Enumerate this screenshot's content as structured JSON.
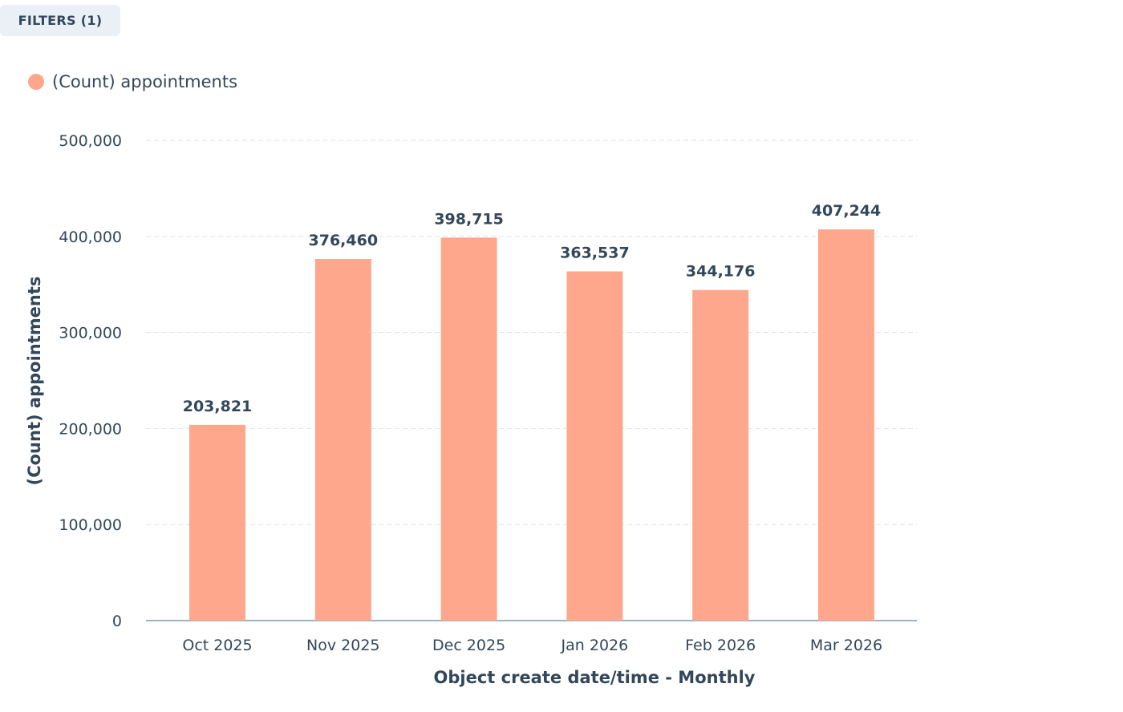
{
  "toolbar": {
    "filters_label": "FILTERS (1)"
  },
  "colors": {
    "bar": "#ffa78c",
    "text": "#33475b",
    "grid": "#dfe3eb",
    "axis": "#7c98b6"
  },
  "chart_data": {
    "type": "bar",
    "legend": [
      {
        "label": "(Count) appointments",
        "color": "#ffa78c"
      }
    ],
    "legend_placement": "top-left",
    "categories": [
      "Oct 2025",
      "Nov 2025",
      "Dec 2025",
      "Jan 2026",
      "Feb 2026",
      "Mar 2026"
    ],
    "values": [
      203821,
      376460,
      398715,
      363537,
      344176,
      407244
    ],
    "data_labels": [
      "203,821",
      "376,460",
      "398,715",
      "363,537",
      "344,176",
      "407,244"
    ],
    "xlabel": "Object create date/time - Monthly",
    "ylabel": "(Count) appointments",
    "ylim": [
      0,
      500000
    ],
    "yticks": [
      0,
      100000,
      200000,
      300000,
      400000,
      500000
    ],
    "ytick_labels": [
      "0",
      "100,000",
      "200,000",
      "300,000",
      "400,000",
      "500,000"
    ],
    "grid": true
  }
}
